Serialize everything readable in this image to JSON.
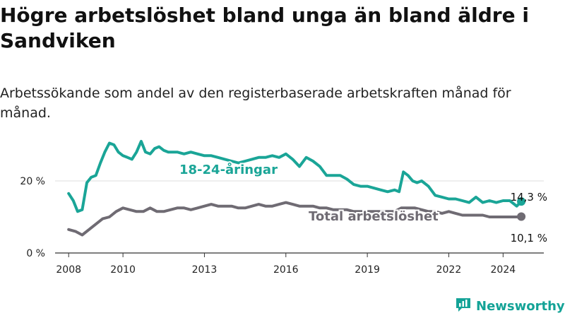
{
  "title": "Högre arbetslöshet bland unga än bland äldre i Sandviken",
  "subtitle": "Arbetssökande som andel av den registerbaserade arbetskraften månad för månad.",
  "brand": "Newsworthy",
  "icons": {
    "logo": "newsworthy-chart-logo-icon"
  },
  "colors": {
    "youth": "#1aa597",
    "total": "#6f6b73",
    "brand": "#14a397"
  },
  "chart_data": {
    "type": "line",
    "x_unit": "year",
    "xlim": [
      2007.5,
      2025.5
    ],
    "ylim": [
      0,
      30
    ],
    "x_ticks": [
      2008,
      2010,
      2013,
      2016,
      2019,
      2022,
      2024
    ],
    "y_ticks": [
      {
        "value": 0,
        "label": "0 %"
      },
      {
        "value": 20,
        "label": "20 %"
      }
    ],
    "grid": "horizontal",
    "series": [
      {
        "name": "18-24-åringar",
        "color": "#1aa597",
        "end_label": "14,3 %",
        "x": [
          2008.0,
          2008.17,
          2008.33,
          2008.5,
          2008.67,
          2008.83,
          2009.0,
          2009.17,
          2009.33,
          2009.5,
          2009.67,
          2009.83,
          2010.0,
          2010.17,
          2010.33,
          2010.5,
          2010.67,
          2010.83,
          2011.0,
          2011.17,
          2011.33,
          2011.5,
          2011.67,
          2011.83,
          2012.0,
          2012.25,
          2012.5,
          2012.75,
          2013.0,
          2013.25,
          2013.5,
          2013.75,
          2014.0,
          2014.25,
          2014.5,
          2014.75,
          2015.0,
          2015.25,
          2015.5,
          2015.75,
          2016.0,
          2016.25,
          2016.5,
          2016.75,
          2017.0,
          2017.25,
          2017.5,
          2017.75,
          2018.0,
          2018.25,
          2018.5,
          2018.75,
          2019.0,
          2019.25,
          2019.5,
          2019.75,
          2020.0,
          2020.17,
          2020.33,
          2020.5,
          2020.67,
          2020.83,
          2021.0,
          2021.25,
          2021.5,
          2021.75,
          2022.0,
          2022.25,
          2022.5,
          2022.75,
          2023.0,
          2023.25,
          2023.5,
          2023.75,
          2024.0,
          2024.25,
          2024.5,
          2024.67
        ],
        "y": [
          16.5,
          14.5,
          11.5,
          12.0,
          19.5,
          21.0,
          21.5,
          25.0,
          28.0,
          30.5,
          30.0,
          28.0,
          27.0,
          26.5,
          26.0,
          28.0,
          31.0,
          28.0,
          27.5,
          29.0,
          29.5,
          28.5,
          28.0,
          28.0,
          28.0,
          27.5,
          28.0,
          27.5,
          27.0,
          27.0,
          26.5,
          26.0,
          25.5,
          25.0,
          25.5,
          26.0,
          26.5,
          26.5,
          27.0,
          26.5,
          27.5,
          26.0,
          24.0,
          26.5,
          25.5,
          24.0,
          21.5,
          21.5,
          21.5,
          20.5,
          19.0,
          18.5,
          18.5,
          18.0,
          17.5,
          17.0,
          17.5,
          17.0,
          22.5,
          21.5,
          20.0,
          19.5,
          20.0,
          18.5,
          16.0,
          15.5,
          15.0,
          15.0,
          14.5,
          14.0,
          15.5,
          14.0,
          14.5,
          14.0,
          14.5,
          14.5,
          13.0,
          14.3
        ]
      },
      {
        "name": "Total arbetslöshet",
        "color": "#6f6b73",
        "end_label": "10,1 %",
        "x": [
          2008.0,
          2008.25,
          2008.5,
          2008.75,
          2009.0,
          2009.25,
          2009.5,
          2009.75,
          2010.0,
          2010.25,
          2010.5,
          2010.75,
          2011.0,
          2011.25,
          2011.5,
          2011.75,
          2012.0,
          2012.25,
          2012.5,
          2012.75,
          2013.0,
          2013.25,
          2013.5,
          2013.75,
          2014.0,
          2014.25,
          2014.5,
          2014.75,
          2015.0,
          2015.25,
          2015.5,
          2015.75,
          2016.0,
          2016.25,
          2016.5,
          2016.75,
          2017.0,
          2017.25,
          2017.5,
          2017.75,
          2018.0,
          2018.25,
          2018.5,
          2018.75,
          2019.0,
          2019.25,
          2019.5,
          2019.75,
          2020.0,
          2020.25,
          2020.5,
          2020.75,
          2021.0,
          2021.25,
          2021.5,
          2021.75,
          2022.0,
          2022.25,
          2022.5,
          2022.75,
          2023.0,
          2023.25,
          2023.5,
          2023.75,
          2024.0,
          2024.25,
          2024.5,
          2024.67
        ],
        "y": [
          6.5,
          6.0,
          5.0,
          6.5,
          8.0,
          9.5,
          10.0,
          11.5,
          12.5,
          12.0,
          11.5,
          11.5,
          12.5,
          11.5,
          11.5,
          12.0,
          12.5,
          12.5,
          12.0,
          12.5,
          13.0,
          13.5,
          13.0,
          13.0,
          13.0,
          12.5,
          12.5,
          13.0,
          13.5,
          13.0,
          13.0,
          13.5,
          14.0,
          13.5,
          13.0,
          13.0,
          13.0,
          12.5,
          12.5,
          12.0,
          12.0,
          12.0,
          11.5,
          11.5,
          11.5,
          11.5,
          11.5,
          11.5,
          11.5,
          12.5,
          12.5,
          12.5,
          12.0,
          11.5,
          11.5,
          11.0,
          11.5,
          11.0,
          10.5,
          10.5,
          10.5,
          10.5,
          10.0,
          10.0,
          10.0,
          10.0,
          10.0,
          10.1
        ]
      }
    ]
  }
}
